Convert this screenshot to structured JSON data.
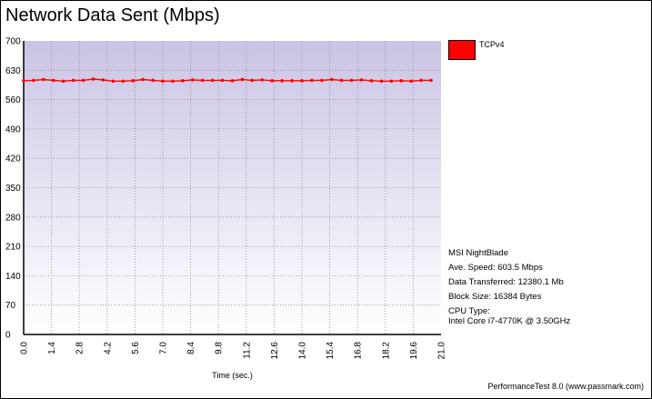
{
  "window": {
    "title": "Network Data Sent (Mbps)",
    "footer": "PerformanceTest 8.0 (www.passmark.com)"
  },
  "legend": {
    "label": "TCPv4",
    "color": "#ff0000"
  },
  "info": {
    "machine": "MSI NightBlade",
    "ave_speed": "Ave. Speed: 603.5 Mbps",
    "data_transferred": "Data Transferred: 12380.1 Mb",
    "block_size": "Block Size: 16384 Bytes",
    "cpu_type_label": "CPU Type:",
    "cpu_type_value": "Intel Core i7-4770K @ 3.50GHz"
  },
  "chart_data": {
    "type": "line",
    "title": "Network Data Sent (Mbps)",
    "xlabel": "Time (sec.)",
    "ylabel": "",
    "xlim": [
      0,
      21
    ],
    "ylim": [
      0,
      700
    ],
    "x_ticks": [
      "0.0",
      "1.4",
      "2.8",
      "4.2",
      "5.6",
      "7.0",
      "8.4",
      "9.8",
      "11.2",
      "12.6",
      "14.0",
      "15.4",
      "16.8",
      "18.2",
      "19.6",
      "21.0"
    ],
    "y_ticks": [
      "0",
      "70",
      "140",
      "210",
      "280",
      "350",
      "420",
      "490",
      "560",
      "630",
      "700"
    ],
    "grid": true,
    "legend_position": "top-right",
    "series": [
      {
        "name": "TCPv4",
        "color": "#ff0000",
        "x": [
          0,
          0.5,
          1,
          1.5,
          2,
          2.5,
          3,
          3.5,
          4,
          4.5,
          5,
          5.5,
          6,
          6.5,
          7,
          7.5,
          8,
          8.5,
          9,
          9.5,
          10,
          10.5,
          11,
          11.5,
          12,
          12.5,
          13,
          13.5,
          14,
          14.5,
          15,
          15.5,
          16,
          16.5,
          17,
          17.5,
          18,
          18.5,
          19,
          19.5,
          20,
          20.5
        ],
        "values": [
          605,
          606,
          608,
          606,
          604,
          606,
          606,
          609,
          607,
          604,
          604,
          605,
          608,
          606,
          604,
          604,
          605,
          607,
          606,
          606,
          606,
          605,
          608,
          606,
          607,
          605,
          605,
          605,
          605,
          606,
          606,
          608,
          606,
          606,
          607,
          605,
          604,
          604,
          605,
          604,
          606,
          606
        ]
      }
    ]
  }
}
